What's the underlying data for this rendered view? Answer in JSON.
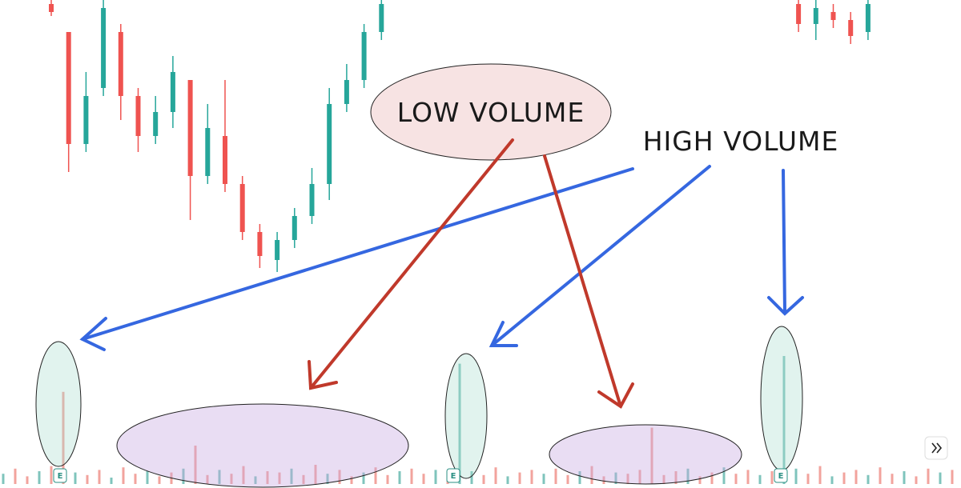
{
  "chart_data": {
    "type": "candlestick",
    "ylim": [
      0,
      100
    ],
    "up_color": "#26a69a",
    "down_color": "#ef5350",
    "open": [
      98.75,
      90,
      55,
      72.5,
      90,
      70,
      57.5,
      65,
      75,
      45,
      57.5,
      42.5,
      27.5,
      18.75,
      25,
      32.5,
      42.5,
      67.5,
      75,
      90,
      null,
      null,
      null,
      null,
      null,
      null,
      null,
      null,
      null,
      null,
      null,
      null,
      null,
      null,
      null,
      null,
      null,
      null,
      null,
      null,
      null,
      null,
      null,
      98.75,
      92.5,
      96.25,
      93.75,
      90
    ],
    "high": [
      100,
      90,
      77.5,
      100,
      92.5,
      72.5,
      70,
      82.5,
      75,
      67.5,
      75,
      45,
      30,
      27.5,
      35,
      47.5,
      72.5,
      80,
      92.5,
      100,
      null,
      null,
      null,
      null,
      null,
      null,
      null,
      null,
      null,
      null,
      null,
      null,
      null,
      null,
      null,
      null,
      null,
      null,
      null,
      null,
      null,
      null,
      null,
      100,
      100,
      98.75,
      96.25,
      100
    ],
    "low": [
      95,
      46.25,
      52.5,
      70,
      62.5,
      52.5,
      55,
      60,
      31.25,
      42.5,
      40,
      25,
      16.25,
      15,
      22.5,
      30,
      37.5,
      65,
      72.5,
      87.5,
      null,
      null,
      null,
      null,
      null,
      null,
      null,
      null,
      null,
      null,
      null,
      null,
      null,
      null,
      null,
      null,
      null,
      null,
      null,
      null,
      null,
      null,
      null,
      90,
      87.5,
      91.25,
      86.25,
      87.5
    ],
    "close": [
      96.25,
      55,
      70,
      97.5,
      70,
      57.5,
      65,
      77.5,
      45,
      60,
      42.5,
      27.5,
      20,
      25,
      32.5,
      42.5,
      67.5,
      75,
      90,
      98.75,
      null,
      null,
      null,
      null,
      null,
      null,
      null,
      null,
      null,
      null,
      null,
      null,
      null,
      null,
      null,
      null,
      null,
      null,
      null,
      null,
      null,
      null,
      null,
      92.5,
      97.5,
      93.75,
      88.75,
      98.75
    ],
    "y2lim": [
      0,
      100
    ],
    "volume_series": [
      {
        "color": "#7fc4bc",
        "values": [
          8,
          null,
          null,
          10,
          null,
          null,
          9,
          null,
          null,
          5,
          null,
          null,
          10,
          null,
          null,
          12,
          null,
          null,
          11,
          null,
          null,
          6,
          null,
          null,
          12,
          null,
          null,
          8,
          null,
          null,
          9,
          null,
          null,
          10,
          null,
          null,
          11,
          null,
          94,
          10,
          null,
          null,
          6,
          null,
          null,
          8,
          null,
          null,
          10,
          null,
          null,
          9,
          null,
          null,
          null,
          null,
          null,
          12,
          null,
          null,
          13,
          null,
          null,
          7,
          null,
          100,
          12,
          null,
          null,
          6,
          null,
          null,
          7,
          null,
          null,
          10,
          null,
          null,
          9,
          null
        ]
      },
      {
        "color": "#f2a39d",
        "values": [
          null,
          12,
          6,
          null,
          14,
          72,
          null,
          7,
          11,
          null,
          13,
          8,
          null,
          6,
          9,
          null,
          30,
          7,
          null,
          8,
          14,
          null,
          10,
          9,
          null,
          7,
          15,
          null,
          11,
          6,
          null,
          13,
          7,
          null,
          12,
          8,
          null,
          9,
          null,
          null,
          7,
          13,
          null,
          9,
          11,
          null,
          12,
          7,
          null,
          14,
          6,
          null,
          8,
          11,
          44,
          7,
          10,
          null,
          6,
          9,
          null,
          8,
          11,
          null,
          10,
          null,
          null,
          8,
          14,
          null,
          9,
          11,
          null,
          13,
          8,
          null,
          6,
          12,
          null,
          11
        ]
      }
    ],
    "annotations": [
      "LOW VOLUME",
      "HIGH VOLUME"
    ],
    "event_markers": [
      "E",
      "E",
      "E"
    ]
  }
}
